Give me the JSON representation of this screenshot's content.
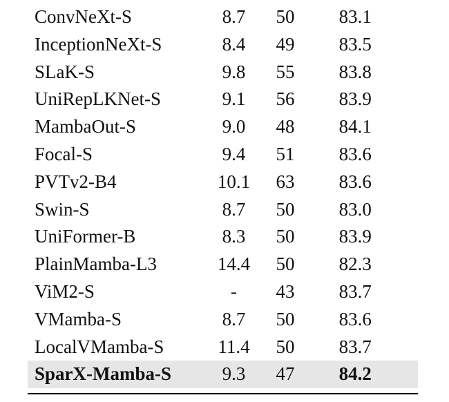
{
  "rows": [
    {
      "model": "ConvNeXt-S",
      "flops": "8.7",
      "params": "50",
      "top1": "83.1"
    },
    {
      "model": "InceptionNeXt-S",
      "flops": "8.4",
      "params": "49",
      "top1": "83.5"
    },
    {
      "model": "SLaK-S",
      "flops": "9.8",
      "params": "55",
      "top1": "83.8"
    },
    {
      "model": "UniRepLKNet-S",
      "flops": "9.1",
      "params": "56",
      "top1": "83.9"
    },
    {
      "model": "MambaOut-S",
      "flops": "9.0",
      "params": "48",
      "top1": "84.1"
    },
    {
      "model": "Focal-S",
      "flops": "9.4",
      "params": "51",
      "top1": "83.6"
    },
    {
      "model": "PVTv2-B4",
      "flops": "10.1",
      "params": "63",
      "top1": "83.6"
    },
    {
      "model": "Swin-S",
      "flops": "8.7",
      "params": "50",
      "top1": "83.0"
    },
    {
      "model": "UniFormer-B",
      "flops": "8.3",
      "params": "50",
      "top1": "83.9"
    },
    {
      "model": "PlainMamba-L3",
      "flops": "14.4",
      "params": "50",
      "top1": "82.3"
    },
    {
      "model": "ViM2-S",
      "flops": "-",
      "params": "43",
      "top1": "83.7"
    },
    {
      "model": "VMamba-S",
      "flops": "8.7",
      "params": "50",
      "top1": "83.6"
    },
    {
      "model": "LocalVMamba-S",
      "flops": "11.4",
      "params": "50",
      "top1": "83.7"
    },
    {
      "model": "SparX-Mamba-S",
      "flops": "9.3",
      "params": "47",
      "top1": "84.2"
    }
  ],
  "highlight_color": "#e6e6e6"
}
